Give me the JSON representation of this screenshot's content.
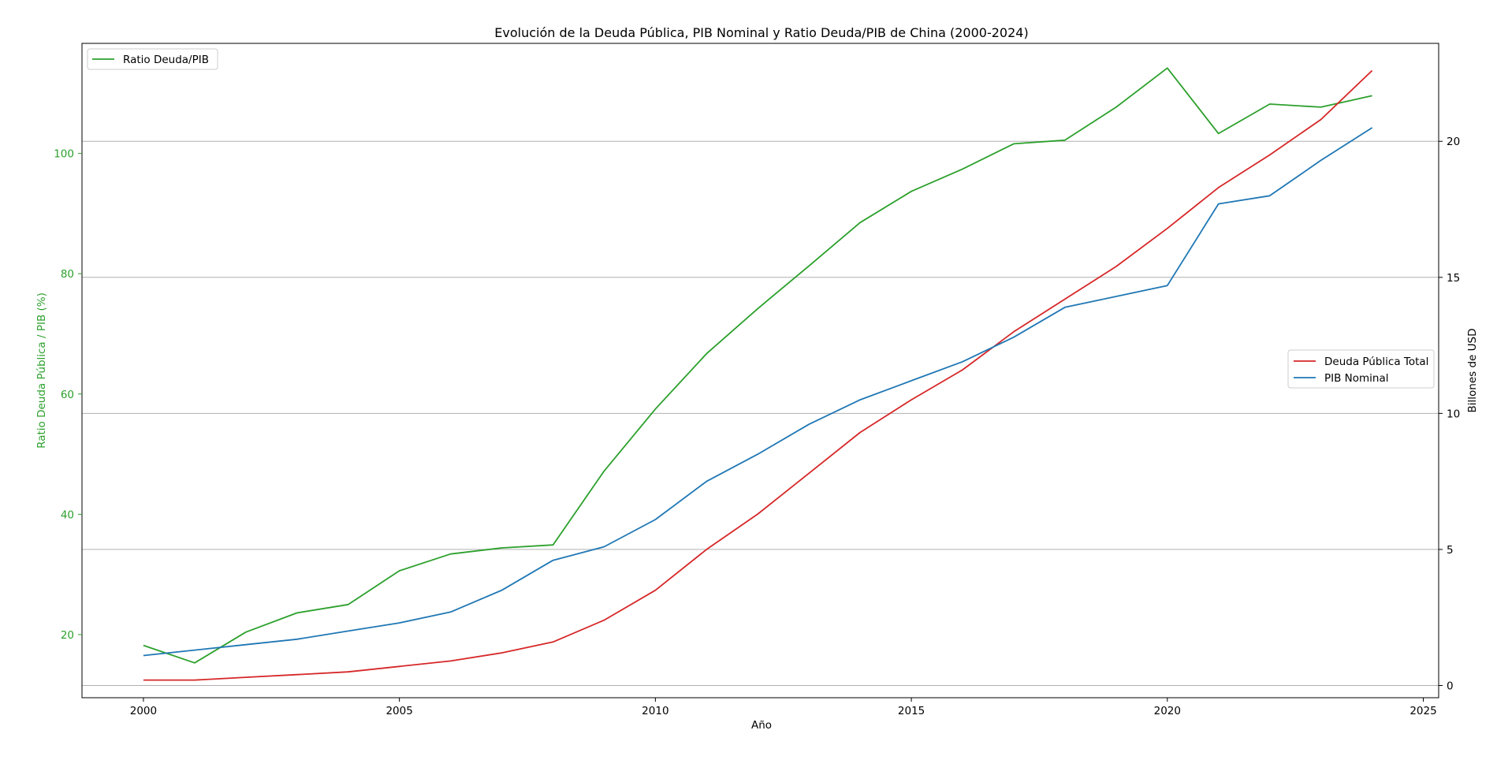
{
  "chart_data": {
    "type": "line",
    "title": "Evolución de la Deuda Pública, PIB Nominal y Ratio Deuda/PIB de China (2000-2024)",
    "xlabel": "Año",
    "ylabel_left": "Ratio Deuda Pública / PIB (%)",
    "ylabel_right": "Billones de USD",
    "x": [
      2000,
      2001,
      2002,
      2003,
      2004,
      2005,
      2006,
      2007,
      2008,
      2009,
      2010,
      2011,
      2012,
      2013,
      2014,
      2015,
      2016,
      2017,
      2018,
      2019,
      2020,
      2021,
      2022,
      2023,
      2024
    ],
    "xlim": [
      1998.8,
      2025.3
    ],
    "xticks": [
      2000,
      2005,
      2010,
      2015,
      2020,
      2025
    ],
    "ylim_left": [
      9.5,
      118.3
    ],
    "yticks_left": [
      20,
      40,
      60,
      80,
      100
    ],
    "ylim_right": [
      -0.45,
      23.6
    ],
    "yticks_right": [
      0,
      5,
      10,
      15,
      20
    ],
    "grid": "horizontal lines at right-axis ticks",
    "series": [
      {
        "name": "Ratio Deuda/PIB",
        "axis": "left",
        "color": "#2ca02c",
        "values": [
          18.2,
          15.3,
          20.4,
          23.6,
          25.0,
          30.6,
          33.4,
          34.4,
          34.9,
          47.2,
          57.5,
          66.7,
          74.2,
          81.3,
          88.5,
          93.7,
          97.4,
          101.6,
          102.2,
          107.7,
          114.2,
          103.3,
          108.2,
          107.7,
          109.6
        ]
      },
      {
        "name": "Deuda Pública Total",
        "axis": "right",
        "color": "#d62728",
        "values": [
          0.2,
          0.2,
          0.3,
          0.4,
          0.5,
          0.7,
          0.9,
          1.2,
          1.6,
          2.4,
          3.5,
          5.0,
          6.3,
          7.8,
          9.3,
          10.5,
          11.6,
          13.0,
          14.2,
          15.4,
          16.8,
          18.3,
          19.5,
          20.8,
          22.6
        ]
      },
      {
        "name": "PIB Nominal",
        "axis": "right",
        "color": "#1f77b4",
        "values": [
          1.1,
          1.3,
          1.5,
          1.7,
          2.0,
          2.3,
          2.7,
          3.5,
          4.6,
          5.1,
          6.1,
          7.5,
          8.5,
          9.6,
          10.5,
          11.2,
          11.9,
          12.8,
          13.9,
          14.3,
          14.7,
          17.7,
          18.0,
          19.3,
          20.5
        ]
      }
    ],
    "legends": [
      {
        "placement": "upper-left",
        "entries": [
          "Ratio Deuda/PIB"
        ]
      },
      {
        "placement": "center-right",
        "entries": [
          "Deuda Pública Total",
          "PIB Nominal"
        ]
      }
    ]
  }
}
